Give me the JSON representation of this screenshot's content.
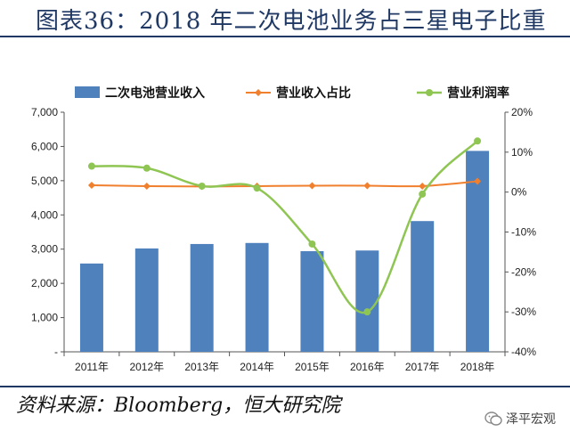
{
  "title": "图表36：2018 年二次电池业务占三星电子比重",
  "source": "资料来源：Bloomberg，恒大研究院",
  "watermark": "泽平宏观",
  "chart_data": {
    "type": "bar",
    "categories": [
      "2011年",
      "2012年",
      "2013年",
      "2014年",
      "2015年",
      "2016年",
      "2017年",
      "2018年"
    ],
    "series": [
      {
        "name": "二次电池营业收入",
        "type": "bar",
        "axis": "left",
        "values": [
          2580,
          3020,
          3150,
          3180,
          2940,
          2960,
          3820,
          5870
        ]
      },
      {
        "name": "营业收入占比",
        "type": "line",
        "axis": "right",
        "values": [
          1.7,
          1.5,
          1.4,
          1.5,
          1.6,
          1.6,
          1.5,
          2.7
        ]
      },
      {
        "name": "营业利润率",
        "type": "line",
        "axis": "right",
        "values": [
          6.5,
          6.0,
          1.5,
          1.0,
          -13.0,
          -30.0,
          -0.5,
          12.8
        ]
      }
    ],
    "y_left": {
      "min": 0,
      "max": 7000,
      "ticks": [
        "-",
        "1,000",
        "2,000",
        "3,000",
        "4,000",
        "5,000",
        "6,000",
        "7,000"
      ]
    },
    "y_right": {
      "min": -40,
      "max": 20,
      "ticks": [
        "-40%",
        "-30%",
        "-20%",
        "-10%",
        "0%",
        "10%",
        "20%"
      ]
    },
    "legend_position": "top",
    "colors": {
      "bar": "#4f81bd",
      "ratio_line": "#f07f2e",
      "margin_line": "#8fc553",
      "title": "#1f3864"
    }
  }
}
